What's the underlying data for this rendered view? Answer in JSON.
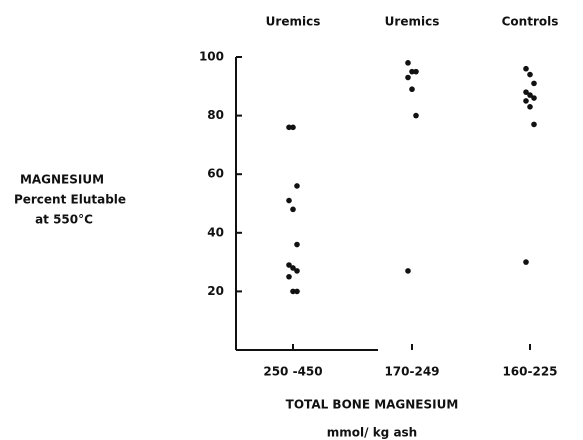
{
  "chart_data": {
    "type": "strip",
    "y_label": [
      "MAGNESIUM",
      "Percent Elutable",
      "at 550°C"
    ],
    "x_label": [
      "TOTAL BONE MAGNESIUM",
      "mmol/ kg ash"
    ],
    "categories": [
      "250 -450",
      "170-249",
      "160-225"
    ],
    "group_labels": [
      "Uremics",
      "Uremics",
      "Controls"
    ],
    "values": [
      [
        76,
        76,
        56,
        51,
        48,
        36,
        29,
        28,
        27,
        25,
        20,
        20
      ],
      [
        98,
        95,
        95,
        93,
        89,
        80,
        27
      ],
      [
        96,
        94,
        91,
        88,
        87,
        86,
        85,
        83,
        77,
        30
      ]
    ],
    "color": "#111111",
    "ylim": [
      0,
      100
    ],
    "yticks": [
      20,
      40,
      60,
      80,
      100
    ]
  }
}
